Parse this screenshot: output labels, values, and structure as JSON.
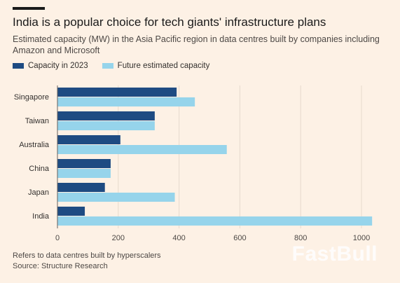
{
  "header": {
    "title": "India is a popular choice for tech giants' infrastructure plans",
    "subtitle": "Estimated capacity (MW) in the Asia Pacific region in data centres built by companies including Amazon and Microsoft"
  },
  "chart_data": {
    "type": "bar",
    "orientation": "horizontal",
    "categories": [
      "Singapore",
      "Taiwan",
      "Australia",
      "China",
      "Japan",
      "India"
    ],
    "series": [
      {
        "name": "Capacity in 2023",
        "color": "#1e4b82",
        "values": [
          392,
          320,
          207,
          175,
          156,
          90
        ]
      },
      {
        "name": "Future estimated capacity",
        "color": "#96d4eb",
        "values": [
          452,
          320,
          557,
          175,
          386,
          1035
        ]
      }
    ],
    "xlim": [
      0,
      1000
    ],
    "xticks": [
      0,
      200,
      400,
      600,
      800,
      1000
    ],
    "grid": true,
    "legend_position": "top-left"
  },
  "footer": {
    "note": "Refers to data centres built by hyperscalers",
    "source": "Source: Structure Research"
  },
  "watermark": "FastBull"
}
